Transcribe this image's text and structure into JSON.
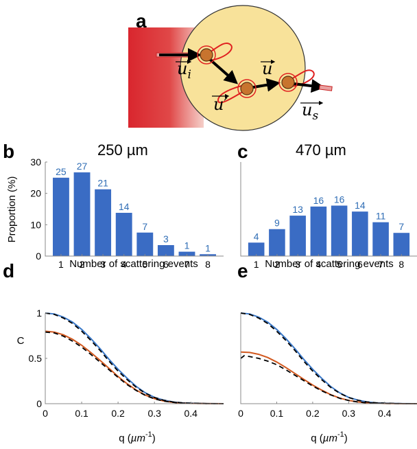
{
  "panel_a": {
    "letter": "a",
    "vectors": {
      "u_i": "u",
      "u_i_sub": "i",
      "u_prime": "u′",
      "u": "u",
      "u_s": "u",
      "u_s_sub": "s"
    },
    "colors": {
      "beam": "#d9262e",
      "disc": "#f8e29a",
      "disc_edge": "#333333",
      "particle": "#c8742e",
      "lobe": "#e02020"
    }
  },
  "chart_data": [
    {
      "panel": "b",
      "type": "bar",
      "title": "250 µm",
      "xlabel": "Number of scattering events",
      "ylabel": "Proportion (%)",
      "categories": [
        "1",
        "2",
        "3",
        "4",
        "5",
        "6",
        "7",
        "8"
      ],
      "values": [
        25,
        26.7,
        21.3,
        13.8,
        7.5,
        3.5,
        1.4,
        0.6
      ],
      "data_labels": [
        "25",
        "27",
        "21",
        "14",
        "7",
        "3",
        "1",
        "1"
      ],
      "ylim": [
        0,
        30
      ],
      "yticks": [
        "0",
        "10",
        "20",
        "30"
      ],
      "bar_color": "#3a6cc4",
      "label_color": "#2f6db5"
    },
    {
      "panel": "c",
      "type": "bar",
      "title": "470 µm",
      "xlabel": "Number of scattering events",
      "ylabel": "",
      "categories": [
        "1",
        "2",
        "3",
        "4",
        "5",
        "6",
        "7",
        "8"
      ],
      "values": [
        4.3,
        8.6,
        12.9,
        15.8,
        16.1,
        14.2,
        10.8,
        7.4
      ],
      "data_labels": [
        "4",
        "9",
        "13",
        "16",
        "16",
        "14",
        "11",
        "7"
      ],
      "ylim": [
        0,
        30
      ],
      "yticks": [],
      "bar_color": "#3a6cc4",
      "label_color": "#2f6db5"
    },
    {
      "panel": "d",
      "type": "line",
      "xlabel": "q (µm⁻¹)",
      "xlabel_main": "q (",
      "xlabel_mu": "µm",
      "xlabel_sup": "-1",
      "xlabel_close": ")",
      "ylabel": "C",
      "xlim": [
        0,
        0.49
      ],
      "ylim": [
        0,
        1
      ],
      "xticks": [
        "0",
        "0.1",
        "0.2",
        "0.3",
        "0.4"
      ],
      "yticks": [
        "0",
        "0.5",
        "1"
      ],
      "series": [
        {
          "color": "#3a78c8",
          "style": "solid",
          "x": [
            0,
            0.025,
            0.05,
            0.075,
            0.1,
            0.125,
            0.15,
            0.175,
            0.2,
            0.225,
            0.25,
            0.275,
            0.3,
            0.325,
            0.35,
            0.375,
            0.4,
            0.45,
            0.49
          ],
          "y": [
            1.0,
            0.99,
            0.955,
            0.9,
            0.82,
            0.72,
            0.61,
            0.49,
            0.38,
            0.28,
            0.19,
            0.12,
            0.07,
            0.04,
            0.02,
            0.01,
            0.005,
            0.001,
            0.0
          ]
        },
        {
          "color": "#d2581e",
          "style": "solid",
          "x": [
            0,
            0.025,
            0.05,
            0.075,
            0.1,
            0.125,
            0.15,
            0.175,
            0.2,
            0.225,
            0.25,
            0.275,
            0.3,
            0.325,
            0.35,
            0.375,
            0.4,
            0.45,
            0.49
          ],
          "y": [
            0.8,
            0.79,
            0.76,
            0.71,
            0.645,
            0.565,
            0.48,
            0.39,
            0.3,
            0.22,
            0.15,
            0.095,
            0.055,
            0.03,
            0.015,
            0.007,
            0.003,
            0.001,
            0.0
          ]
        },
        {
          "color": "#000000",
          "style": "dashed",
          "x": [
            0,
            0.025,
            0.05,
            0.075,
            0.1,
            0.125,
            0.15,
            0.175,
            0.2,
            0.225,
            0.25,
            0.275,
            0.3,
            0.325,
            0.35,
            0.375,
            0.4,
            0.45,
            0.49
          ],
          "y": [
            1.0,
            0.985,
            0.945,
            0.885,
            0.8,
            0.7,
            0.59,
            0.47,
            0.36,
            0.265,
            0.18,
            0.115,
            0.068,
            0.038,
            0.02,
            0.01,
            0.005,
            0.001,
            0.0
          ]
        },
        {
          "color": "#000000",
          "style": "dashed",
          "x": [
            0,
            0.025,
            0.05,
            0.075,
            0.1,
            0.125,
            0.15,
            0.175,
            0.2,
            0.225,
            0.25,
            0.275,
            0.3,
            0.325,
            0.35,
            0.375,
            0.4,
            0.45,
            0.49
          ],
          "y": [
            0.79,
            0.78,
            0.745,
            0.69,
            0.625,
            0.545,
            0.46,
            0.375,
            0.29,
            0.21,
            0.145,
            0.092,
            0.053,
            0.029,
            0.015,
            0.007,
            0.003,
            0.001,
            0.0
          ]
        }
      ]
    },
    {
      "panel": "e",
      "type": "line",
      "xlabel": "q (µm⁻¹)",
      "xlabel_main": "q (",
      "xlabel_mu": "µm",
      "xlabel_sup": "-1",
      "xlabel_close": ")",
      "ylabel": "",
      "xlim": [
        0,
        0.49
      ],
      "ylim": [
        0,
        1
      ],
      "xticks": [
        "0",
        "0.1",
        "0.2",
        "0.3",
        "0.4"
      ],
      "yticks": [],
      "series": [
        {
          "color": "#3a78c8",
          "style": "solid",
          "x": [
            0,
            0.025,
            0.05,
            0.075,
            0.1,
            0.125,
            0.15,
            0.175,
            0.2,
            0.225,
            0.25,
            0.275,
            0.3,
            0.325,
            0.35,
            0.375,
            0.4,
            0.45,
            0.49
          ],
          "y": [
            1.0,
            0.99,
            0.955,
            0.9,
            0.82,
            0.72,
            0.61,
            0.49,
            0.38,
            0.28,
            0.19,
            0.12,
            0.07,
            0.04,
            0.02,
            0.01,
            0.005,
            0.001,
            0.0
          ]
        },
        {
          "color": "#d2581e",
          "style": "solid",
          "x": [
            0,
            0.025,
            0.05,
            0.075,
            0.1,
            0.125,
            0.15,
            0.175,
            0.2,
            0.225,
            0.25,
            0.275,
            0.3,
            0.325,
            0.35,
            0.375,
            0.4,
            0.45,
            0.49
          ],
          "y": [
            0.57,
            0.565,
            0.545,
            0.51,
            0.46,
            0.4,
            0.335,
            0.27,
            0.205,
            0.15,
            0.1,
            0.062,
            0.036,
            0.02,
            0.01,
            0.005,
            0.002,
            0.0,
            0.0
          ]
        },
        {
          "color": "#000000",
          "style": "dashed",
          "x": [
            0,
            0.025,
            0.05,
            0.075,
            0.1,
            0.125,
            0.15,
            0.175,
            0.2,
            0.225,
            0.25,
            0.275,
            0.3,
            0.325,
            0.35,
            0.375,
            0.4,
            0.45,
            0.49
          ],
          "y": [
            1.0,
            0.985,
            0.945,
            0.885,
            0.8,
            0.7,
            0.59,
            0.47,
            0.36,
            0.265,
            0.18,
            0.115,
            0.068,
            0.038,
            0.02,
            0.01,
            0.005,
            0.001,
            0.0
          ]
        },
        {
          "color": "#000000",
          "style": "dashed",
          "x": [
            0,
            0.01,
            0.025,
            0.05,
            0.075,
            0.1,
            0.125,
            0.15,
            0.175,
            0.2,
            0.225,
            0.25,
            0.275,
            0.3,
            0.325,
            0.35,
            0.375,
            0.4,
            0.45,
            0.49
          ],
          "y": [
            0.5,
            0.53,
            0.52,
            0.5,
            0.47,
            0.43,
            0.375,
            0.315,
            0.255,
            0.195,
            0.142,
            0.097,
            0.06,
            0.035,
            0.019,
            0.01,
            0.005,
            0.002,
            0.0,
            0.0
          ]
        }
      ]
    }
  ]
}
